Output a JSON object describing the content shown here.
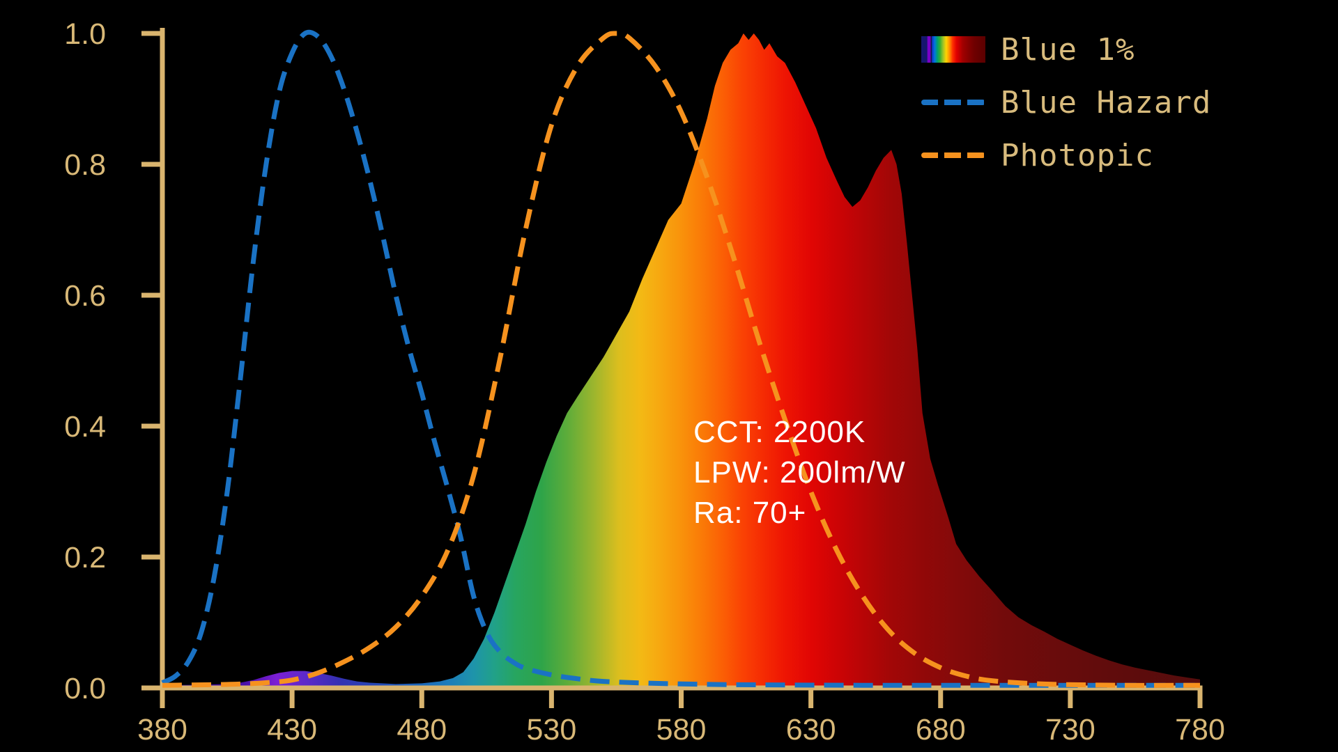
{
  "colors": {
    "background": "#000000",
    "axis": "#d9b46e",
    "tick_text": "#d8b877",
    "legend_text": "#d8bb7d",
    "annotation_text": "#ffffff",
    "blue_hazard": "#1a72c4",
    "photopic": "#f6921e"
  },
  "legend": {
    "items": [
      {
        "label": "Blue 1%",
        "marker": "spectrum-swatch"
      },
      {
        "label": "Blue Hazard",
        "marker": "dashed-line",
        "color": "#1a72c4"
      },
      {
        "label": "Photopic",
        "marker": "dashed-line",
        "color": "#f6921e"
      }
    ],
    "swatch_gradient": "#16166e 0%,#16166e 9%,#7a00c8 10%,#7a00c8 14%,#14142a 15.5%,#1133cc 17%,#0077dd 21%,#00a070 25%,#2fae34 29%,#9ec428 34%,#ffd400 39%,#ff9000 44%,#ff3000 49%,#e00000 55%,#a00000 65%,#700000 82%,#5a0000 100%"
  },
  "annotation": {
    "lines": [
      "CCT: 2200K",
      "LPW: 200lm/W",
      "Ra: 70+"
    ]
  },
  "chart_data": {
    "type": "area",
    "title": "",
    "xlabel": "",
    "ylabel": "",
    "grid": false,
    "legend_position": "top-right",
    "x_axis": {
      "min": 380,
      "max": 780,
      "tick_labels": [
        "380",
        "430",
        "480",
        "530",
        "580",
        "630",
        "680",
        "730",
        "780"
      ],
      "tick_values": [
        380,
        430,
        480,
        530,
        580,
        630,
        680,
        730,
        780
      ]
    },
    "y_axis": {
      "min": 0.0,
      "max": 1.0,
      "tick_labels": [
        "0.0",
        "0.2",
        "0.4",
        "0.6",
        "0.8",
        "1.0"
      ],
      "tick_values": [
        0.0,
        0.2,
        0.4,
        0.6,
        0.8,
        1.0
      ]
    },
    "series": [
      {
        "name": "Blue 1%",
        "style": "filled-spectrum",
        "points": [
          [
            380,
            0.004
          ],
          [
            395,
            0.005
          ],
          [
            405,
            0.006
          ],
          [
            410,
            0.008
          ],
          [
            415,
            0.012
          ],
          [
            420,
            0.018
          ],
          [
            425,
            0.023
          ],
          [
            430,
            0.026
          ],
          [
            435,
            0.026
          ],
          [
            440,
            0.023
          ],
          [
            445,
            0.019
          ],
          [
            450,
            0.014
          ],
          [
            455,
            0.01
          ],
          [
            460,
            0.008
          ],
          [
            470,
            0.006
          ],
          [
            480,
            0.007
          ],
          [
            487,
            0.01
          ],
          [
            492,
            0.015
          ],
          [
            496,
            0.024
          ],
          [
            500,
            0.045
          ],
          [
            504,
            0.075
          ],
          [
            508,
            0.115
          ],
          [
            512,
            0.16
          ],
          [
            516,
            0.205
          ],
          [
            520,
            0.25
          ],
          [
            524,
            0.3
          ],
          [
            528,
            0.345
          ],
          [
            532,
            0.385
          ],
          [
            536,
            0.42
          ],
          [
            540,
            0.445
          ],
          [
            545,
            0.475
          ],
          [
            550,
            0.505
          ],
          [
            555,
            0.54
          ],
          [
            560,
            0.575
          ],
          [
            565,
            0.625
          ],
          [
            570,
            0.67
          ],
          [
            575,
            0.715
          ],
          [
            580,
            0.74
          ],
          [
            585,
            0.8
          ],
          [
            590,
            0.87
          ],
          [
            593,
            0.92
          ],
          [
            596,
            0.955
          ],
          [
            599,
            0.975
          ],
          [
            602,
            0.985
          ],
          [
            604,
            1.0
          ],
          [
            606,
            0.99
          ],
          [
            608,
            1.0
          ],
          [
            610,
            0.99
          ],
          [
            612,
            0.975
          ],
          [
            614,
            0.985
          ],
          [
            617,
            0.965
          ],
          [
            620,
            0.955
          ],
          [
            624,
            0.925
          ],
          [
            628,
            0.89
          ],
          [
            632,
            0.855
          ],
          [
            636,
            0.81
          ],
          [
            640,
            0.775
          ],
          [
            643,
            0.75
          ],
          [
            646,
            0.735
          ],
          [
            649,
            0.745
          ],
          [
            652,
            0.765
          ],
          [
            655,
            0.79
          ],
          [
            658,
            0.81
          ],
          [
            661,
            0.822
          ],
          [
            663,
            0.8
          ],
          [
            665,
            0.755
          ],
          [
            667,
            0.68
          ],
          [
            669,
            0.6
          ],
          [
            671,
            0.52
          ],
          [
            673,
            0.42
          ],
          [
            676,
            0.35
          ],
          [
            679,
            0.31
          ],
          [
            683,
            0.26
          ],
          [
            686,
            0.22
          ],
          [
            690,
            0.195
          ],
          [
            695,
            0.17
          ],
          [
            700,
            0.148
          ],
          [
            705,
            0.125
          ],
          [
            710,
            0.108
          ],
          [
            715,
            0.096
          ],
          [
            720,
            0.086
          ],
          [
            725,
            0.075
          ],
          [
            730,
            0.066
          ],
          [
            735,
            0.057
          ],
          [
            740,
            0.049
          ],
          [
            745,
            0.042
          ],
          [
            750,
            0.036
          ],
          [
            755,
            0.031
          ],
          [
            760,
            0.027
          ],
          [
            765,
            0.023
          ],
          [
            770,
            0.019
          ],
          [
            775,
            0.016
          ],
          [
            780,
            0.013
          ]
        ],
        "gradient_stops": [
          [
            380,
            "#2d0a78"
          ],
          [
            412,
            "#4a10aa"
          ],
          [
            424,
            "#7c1fd4"
          ],
          [
            436,
            "#5a2ac8"
          ],
          [
            448,
            "#3430b2"
          ],
          [
            462,
            "#2546b4"
          ],
          [
            478,
            "#1b64ba"
          ],
          [
            490,
            "#1c7cba"
          ],
          [
            500,
            "#1e94aa"
          ],
          [
            508,
            "#21a188"
          ],
          [
            516,
            "#27a560"
          ],
          [
            526,
            "#2ea449"
          ],
          [
            536,
            "#5dac3a"
          ],
          [
            546,
            "#9ab52e"
          ],
          [
            556,
            "#dcbe1e"
          ],
          [
            564,
            "#f3ba15"
          ],
          [
            572,
            "#f7a710"
          ],
          [
            580,
            "#f9920b"
          ],
          [
            588,
            "#fa7a07"
          ],
          [
            596,
            "#fb5f05"
          ],
          [
            604,
            "#fa4104"
          ],
          [
            612,
            "#f52a03"
          ],
          [
            620,
            "#ee1503"
          ],
          [
            630,
            "#e10604"
          ],
          [
            640,
            "#cd0405"
          ],
          [
            650,
            "#b80506"
          ],
          [
            660,
            "#a30707"
          ],
          [
            672,
            "#930808"
          ],
          [
            686,
            "#840a0a"
          ],
          [
            704,
            "#730b0b"
          ],
          [
            740,
            "#620c0c"
          ],
          [
            780,
            "#550d0d"
          ]
        ]
      },
      {
        "name": "Blue Hazard",
        "style": "dashed",
        "color": "#1a72c4",
        "points": [
          [
            380,
            0.008
          ],
          [
            385,
            0.018
          ],
          [
            390,
            0.04
          ],
          [
            395,
            0.085
          ],
          [
            400,
            0.17
          ],
          [
            405,
            0.3
          ],
          [
            410,
            0.47
          ],
          [
            415,
            0.65
          ],
          [
            420,
            0.8
          ],
          [
            425,
            0.91
          ],
          [
            430,
            0.97
          ],
          [
            435,
            1.0
          ],
          [
            440,
            0.995
          ],
          [
            445,
            0.965
          ],
          [
            450,
            0.915
          ],
          [
            455,
            0.85
          ],
          [
            460,
            0.775
          ],
          [
            465,
            0.69
          ],
          [
            470,
            0.6
          ],
          [
            475,
            0.52
          ],
          [
            480,
            0.45
          ],
          [
            485,
            0.375
          ],
          [
            490,
            0.305
          ],
          [
            495,
            0.23
          ],
          [
            500,
            0.14
          ],
          [
            505,
            0.085
          ],
          [
            510,
            0.056
          ],
          [
            515,
            0.04
          ],
          [
            520,
            0.03
          ],
          [
            530,
            0.02
          ],
          [
            540,
            0.014
          ],
          [
            550,
            0.01
          ],
          [
            570,
            0.007
          ],
          [
            600,
            0.005
          ],
          [
            650,
            0.004
          ],
          [
            700,
            0.004
          ],
          [
            780,
            0.004
          ]
        ]
      },
      {
        "name": "Photopic",
        "style": "dashed",
        "color": "#f6921e",
        "points": [
          [
            380,
            0.004
          ],
          [
            400,
            0.005
          ],
          [
            410,
            0.006
          ],
          [
            420,
            0.008
          ],
          [
            430,
            0.012
          ],
          [
            440,
            0.023
          ],
          [
            450,
            0.04
          ],
          [
            460,
            0.062
          ],
          [
            470,
            0.093
          ],
          [
            480,
            0.14
          ],
          [
            490,
            0.21
          ],
          [
            500,
            0.325
          ],
          [
            510,
            0.5
          ],
          [
            520,
            0.7
          ],
          [
            530,
            0.86
          ],
          [
            540,
            0.95
          ],
          [
            550,
            0.993
          ],
          [
            555,
            1.0
          ],
          [
            560,
            0.993
          ],
          [
            570,
            0.95
          ],
          [
            580,
            0.88
          ],
          [
            590,
            0.78
          ],
          [
            600,
            0.66
          ],
          [
            610,
            0.53
          ],
          [
            620,
            0.41
          ],
          [
            630,
            0.3
          ],
          [
            640,
            0.21
          ],
          [
            650,
            0.14
          ],
          [
            660,
            0.088
          ],
          [
            670,
            0.053
          ],
          [
            680,
            0.031
          ],
          [
            690,
            0.018
          ],
          [
            700,
            0.011
          ],
          [
            720,
            0.006
          ],
          [
            750,
            0.004
          ],
          [
            780,
            0.004
          ]
        ]
      }
    ]
  }
}
